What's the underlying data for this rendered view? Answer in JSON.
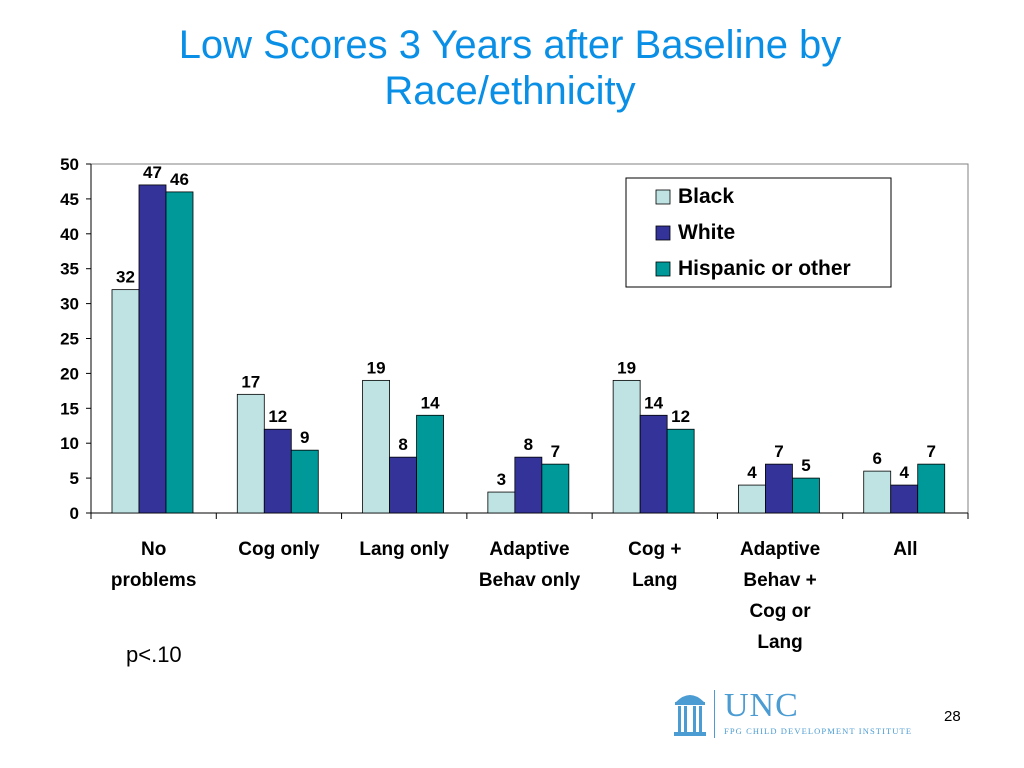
{
  "title": {
    "line1": "Low Scores 3 Years after Baseline by",
    "line2": "Race/ethnicity"
  },
  "chart_data": {
    "type": "bar",
    "categories": [
      [
        "No",
        "problems"
      ],
      [
        "Cog only"
      ],
      [
        "Lang only"
      ],
      [
        "Adaptive",
        "Behav only"
      ],
      [
        "Cog +",
        "Lang"
      ],
      [
        "Adaptive",
        "Behav +",
        "Cog or",
        "Lang"
      ],
      [
        "All"
      ]
    ],
    "series": [
      {
        "name": "Black",
        "color": "#bfe3e3",
        "values": [
          32,
          17,
          19,
          3,
          19,
          4,
          6
        ]
      },
      {
        "name": "White",
        "color": "#333399",
        "values": [
          47,
          12,
          8,
          8,
          14,
          7,
          4
        ]
      },
      {
        "name": "Hispanic or other",
        "color": "#009999",
        "values": [
          46,
          9,
          14,
          7,
          12,
          5,
          7
        ]
      }
    ],
    "ylim": [
      0,
      50
    ],
    "yticks": [
      "0",
      "5",
      "10",
      "15",
      "20",
      "25",
      "30",
      "35",
      "40",
      "45",
      "50"
    ],
    "legend_position": "top-right",
    "grid": false
  },
  "note": "p<.10",
  "logo": {
    "main": "UNC",
    "sub": "FPG CHILD DEVELOPMENT INSTITUTE"
  },
  "page_number": "28"
}
